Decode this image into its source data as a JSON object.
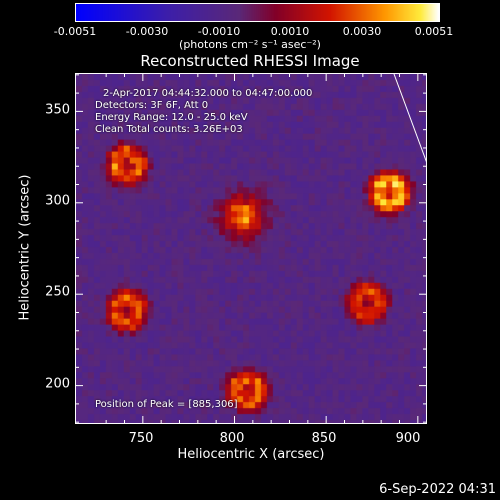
{
  "colorbar": {
    "ticks": [
      "-0.0051",
      "-0.0030",
      "-0.0010",
      "0.0010",
      "0.0030",
      "0.0051"
    ],
    "unit": "(photons cm⁻² s⁻¹ asec⁻²)",
    "min": -0.0051,
    "max": 0.0051
  },
  "chart_data": {
    "type": "heatmap",
    "title": "Reconstructed RHESSI Image",
    "xlabel": "Heliocentric X (arcsec)",
    "ylabel": "Heliocentric Y (arcsec)",
    "xlim": [
      713,
      905
    ],
    "ylim": [
      179,
      371
    ],
    "xticks": [
      "750",
      "800",
      "850",
      "900"
    ],
    "yticks": [
      "200",
      "250",
      "300",
      "350"
    ],
    "sources": [
      {
        "x": 885,
        "y": 306,
        "peak": 0.0051,
        "shape": "ring"
      },
      {
        "x": 805,
        "y": 293,
        "peak": 0.0045,
        "shape": "blob"
      },
      {
        "x": 741,
        "y": 321,
        "peak": 0.004,
        "shape": "ring"
      },
      {
        "x": 741,
        "y": 241,
        "peak": 0.004,
        "shape": "ring"
      },
      {
        "x": 873,
        "y": 245,
        "peak": 0.0036,
        "shape": "ring"
      },
      {
        "x": 807,
        "y": 197,
        "peak": 0.004,
        "shape": "ring"
      }
    ],
    "annotations": [
      "2-Apr-2017 04:44:32.000 to 04:47:00.000",
      "Detectors: 3F 6F, Att 0",
      "Energy Range: 12.0 - 25.0 keV",
      "Clean     Total counts: 3.26E+03"
    ],
    "peak_label": "Position of Peak = [885,306]"
  },
  "footer": "6-Sep-2022 04:31"
}
